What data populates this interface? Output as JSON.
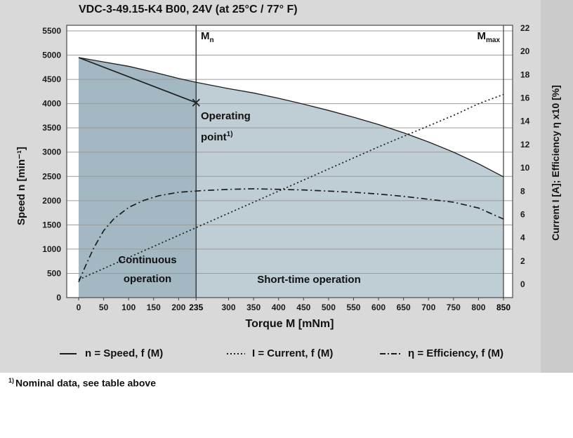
{
  "chart_data": {
    "type": "line",
    "title": "VDC-3-49.15-K4 B00, 24V (at 25°C / 77° F)",
    "xlabel": "Torque M [mNm]",
    "ylabel_left": "Speed n [min⁻¹]",
    "ylabel_right": "Current I [A]; Efficiency η x10 [%]",
    "xlim": [
      0,
      850
    ],
    "y_left_lim": [
      0,
      5500
    ],
    "y_right_lim": [
      0,
      22
    ],
    "x_ticks": [
      0,
      50,
      100,
      150,
      200,
      235,
      300,
      350,
      400,
      450,
      500,
      550,
      600,
      650,
      700,
      750,
      800,
      850
    ],
    "x_bold_ticks": [
      235,
      850
    ],
    "y_left_ticks": [
      0,
      500,
      1000,
      1500,
      2000,
      2500,
      3000,
      3500,
      4000,
      4500,
      5000,
      5500
    ],
    "y_right_ticks": [
      0,
      2,
      4,
      6,
      8,
      10,
      12,
      14,
      16,
      18,
      20,
      22
    ],
    "grid": true,
    "legend_position": "bottom",
    "mn": {
      "label_main": "M",
      "label_sub": "n",
      "x": 235
    },
    "mmax": {
      "label_main": "M",
      "label_sub": "max",
      "x": 850
    },
    "operating_point": {
      "x": 235,
      "n": 4020,
      "label_line1": "Operating",
      "label_line2": "point",
      "label_sup": "1)"
    },
    "regions": [
      {
        "key": "continuous-operation",
        "label": "Continuous operation",
        "from": 0,
        "to": 235,
        "color": "#a3b8c3"
      },
      {
        "key": "short-time-operation",
        "label": "Short-time operation",
        "from": 235,
        "to": 850,
        "color": "#bfcdd5"
      }
    ],
    "series": [
      {
        "key": "speed-line",
        "name": "n = Speed, f (M)",
        "axis": "left",
        "style": "solid",
        "points": [
          [
            0,
            4950
          ],
          [
            235,
            4020
          ]
        ]
      },
      {
        "key": "speed-envelope",
        "name": "speed envelope",
        "axis": "left",
        "style": "boundary",
        "points": [
          [
            0,
            4950
          ],
          [
            50,
            4860
          ],
          [
            100,
            4770
          ],
          [
            150,
            4650
          ],
          [
            200,
            4520
          ],
          [
            235,
            4440
          ],
          [
            300,
            4310
          ],
          [
            350,
            4220
          ],
          [
            400,
            4110
          ],
          [
            450,
            3990
          ],
          [
            500,
            3860
          ],
          [
            550,
            3720
          ],
          [
            600,
            3570
          ],
          [
            650,
            3400
          ],
          [
            700,
            3210
          ],
          [
            750,
            3000
          ],
          [
            800,
            2760
          ],
          [
            850,
            2490
          ]
        ]
      },
      {
        "key": "current-line",
        "name": "I = Current, f (M)",
        "axis": "right",
        "style": "dotted",
        "points": [
          [
            0,
            0.4
          ],
          [
            50,
            1.35
          ],
          [
            100,
            2.3
          ],
          [
            150,
            3.25
          ],
          [
            200,
            4.2
          ],
          [
            250,
            5.15
          ],
          [
            300,
            6.1
          ],
          [
            350,
            7.05
          ],
          [
            400,
            8.0
          ],
          [
            450,
            8.95
          ],
          [
            500,
            9.9
          ],
          [
            550,
            10.85
          ],
          [
            600,
            11.8
          ],
          [
            650,
            12.7
          ],
          [
            700,
            13.6
          ],
          [
            750,
            14.5
          ],
          [
            800,
            15.5
          ],
          [
            850,
            16.3
          ]
        ]
      },
      {
        "key": "efficiency-line",
        "name": "η = Efficiency, f (M)",
        "axis": "right",
        "style": "dashdot",
        "points": [
          [
            0,
            0.2
          ],
          [
            15,
            1.7
          ],
          [
            30,
            3.1
          ],
          [
            50,
            4.6
          ],
          [
            70,
            5.6
          ],
          [
            100,
            6.6
          ],
          [
            130,
            7.2
          ],
          [
            160,
            7.6
          ],
          [
            200,
            7.9
          ],
          [
            250,
            8.05
          ],
          [
            300,
            8.15
          ],
          [
            350,
            8.2
          ],
          [
            400,
            8.15
          ],
          [
            450,
            8.1
          ],
          [
            500,
            8.0
          ],
          [
            550,
            7.9
          ],
          [
            600,
            7.75
          ],
          [
            650,
            7.55
          ],
          [
            700,
            7.3
          ],
          [
            750,
            7.05
          ],
          [
            800,
            6.55
          ],
          [
            850,
            5.6
          ]
        ]
      }
    ]
  },
  "footnote": {
    "sup": "1)",
    "text": "Nominal data, see table above"
  }
}
